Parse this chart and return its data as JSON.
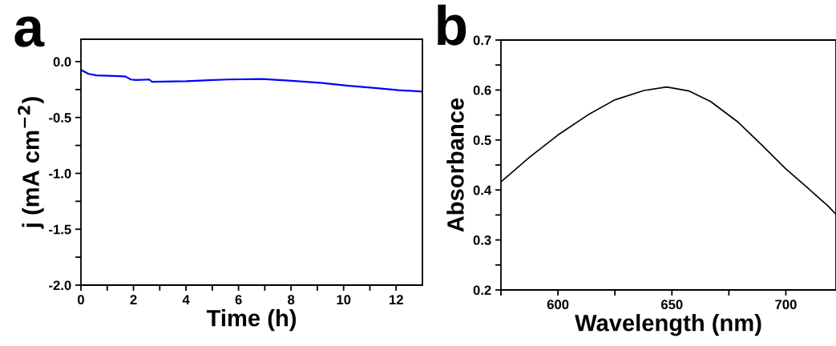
{
  "chart_data": [
    {
      "type": "line",
      "title": "a",
      "xlabel": "Time (h)",
      "ylabel": "j (mA cm$^{−2}$)",
      "series": [
        {
          "color": "#0000ff",
          "x": [
            0,
            0.29,
            0.6,
            1.5,
            1.7,
            1.9,
            2.1,
            2.6,
            2.7,
            4,
            5.6,
            6.9,
            7.9,
            9.1,
            10.2,
            11.2,
            12.1,
            12.8,
            13
          ],
          "values": [
            -0.074,
            -0.11,
            -0.124,
            -0.13,
            -0.134,
            -0.16,
            -0.165,
            -0.16,
            -0.18,
            -0.175,
            -0.16,
            -0.155,
            -0.17,
            -0.19,
            -0.217,
            -0.237,
            -0.256,
            -0.265,
            -0.268
          ]
        }
      ],
      "xlim": [
        0,
        13
      ],
      "ylim": [
        -2.0,
        0.2
      ],
      "xticks": [
        0,
        {
          "value": 1,
          "label": null
        },
        2,
        {
          "value": 3,
          "label": null
        },
        4,
        {
          "value": 5,
          "label": null
        },
        6,
        {
          "value": 7,
          "label": null
        },
        8,
        {
          "value": 9,
          "label": null
        },
        10,
        {
          "value": 11,
          "label": null
        },
        12
      ],
      "yticks": [
        {
          "value": -2.0,
          "label": "-2.0"
        },
        {
          "value": -1.75,
          "label": null
        },
        {
          "value": -1.5,
          "label": "-1.5"
        },
        {
          "value": -1.25,
          "label": null
        },
        {
          "value": -1.0,
          "label": "-1.0"
        },
        {
          "value": -0.75,
          "label": null
        },
        {
          "value": -0.5,
          "label": "-0.5"
        },
        {
          "value": -0.25,
          "label": null
        },
        {
          "value": 0.0,
          "label": "0.0"
        }
      ],
      "grid": false,
      "legend": false,
      "marker": "none",
      "line_style": "solid"
    },
    {
      "type": "line",
      "title": "b",
      "xlabel": "Wavelength (nm)",
      "ylabel": "Absorbance",
      "series": [
        {
          "color": "#000000",
          "x": [
            575.2,
            587.4,
            600,
            613.1,
            624.8,
            637.7,
            647.7,
            657.6,
            667,
            678.7,
            689.2,
            699.8,
            709.1,
            718.5,
            721.8
          ],
          "values": [
            0.417,
            0.465,
            0.51,
            0.55,
            0.58,
            0.599,
            0.606,
            0.598,
            0.577,
            0.537,
            0.491,
            0.443,
            0.406,
            0.368,
            0.352
          ]
        }
      ],
      "xlim": [
        575,
        722
      ],
      "ylim": [
        0.2,
        0.7
      ],
      "xticks": [
        {
          "value": 575,
          "label": null
        },
        600,
        {
          "value": 625,
          "label": null
        },
        650,
        {
          "value": 675,
          "label": null
        },
        700
      ],
      "yticks": [
        0.2,
        {
          "value": 0.25,
          "label": null
        },
        0.3,
        {
          "value": 0.35,
          "label": null
        },
        0.4,
        {
          "value": 0.45,
          "label": null
        },
        0.5,
        {
          "value": 0.55,
          "label": null
        },
        0.6,
        {
          "value": 0.65,
          "label": null
        },
        0.7
      ],
      "grid": false,
      "legend": false,
      "marker": "none",
      "line_style": "solid"
    }
  ]
}
